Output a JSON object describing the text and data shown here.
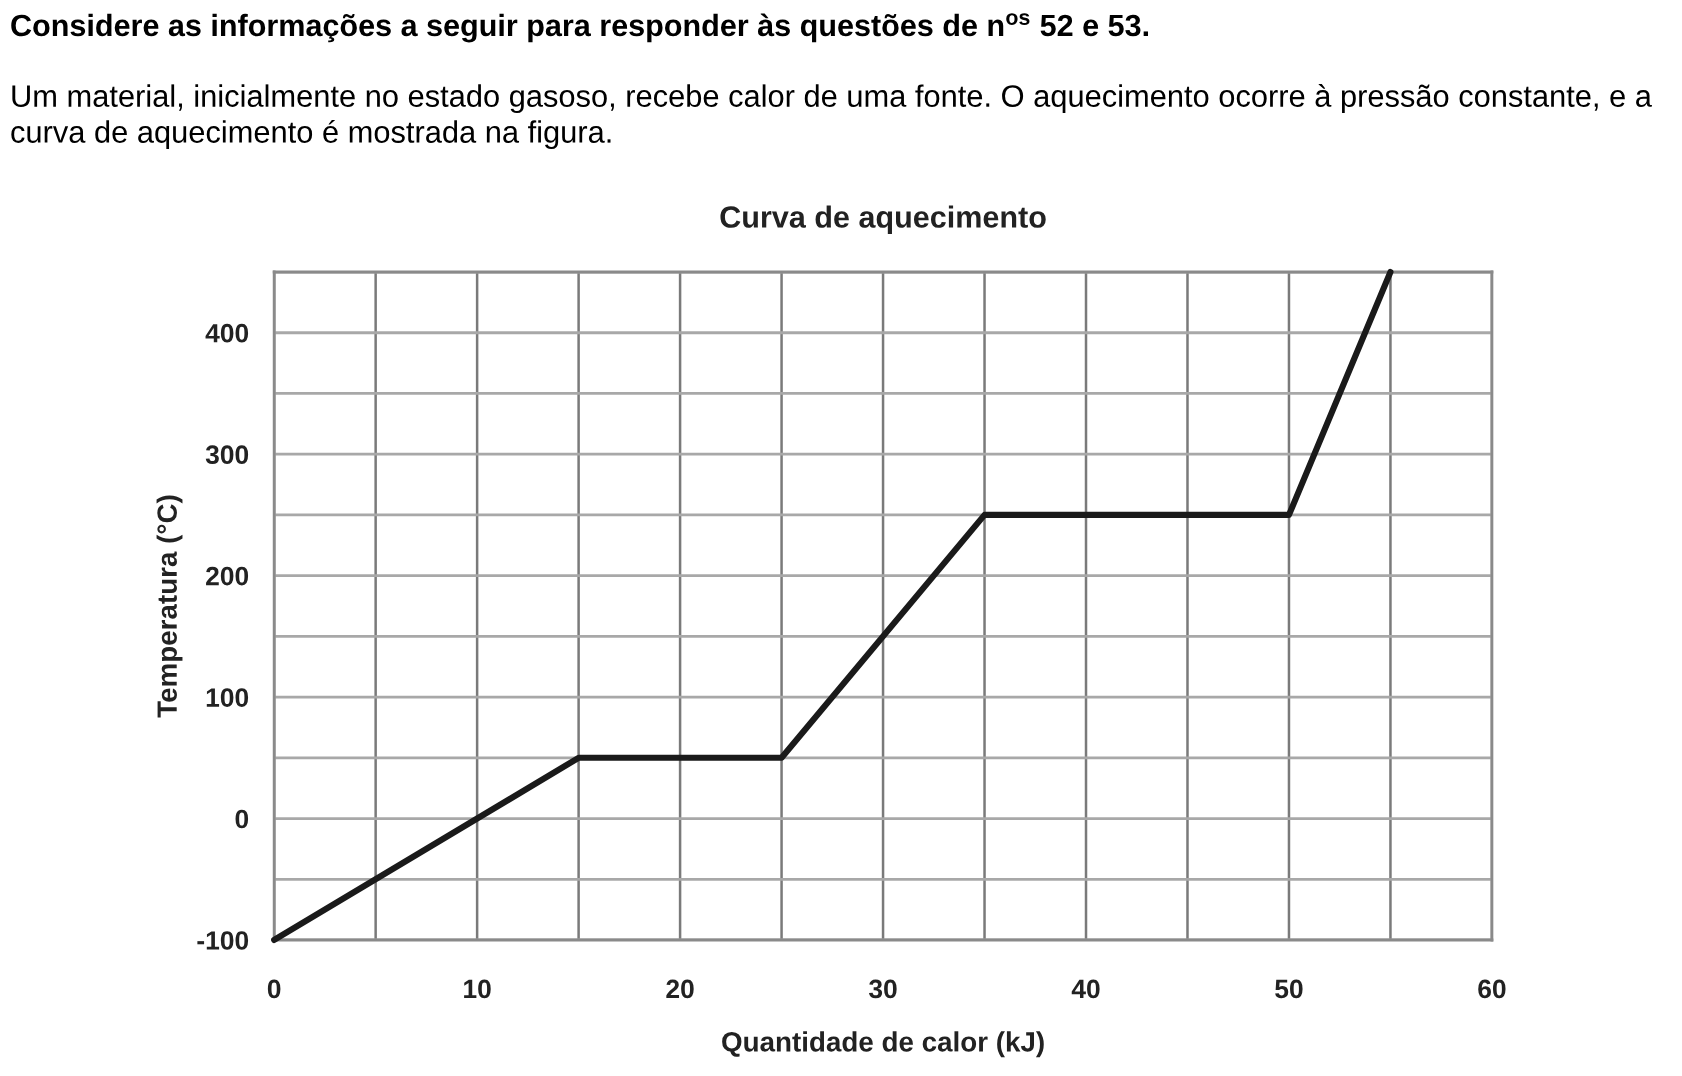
{
  "chart_data": {
    "type": "line",
    "title": "Curva de aquecimento",
    "xlabel": "Quantidade de calor (kJ)",
    "ylabel": "Temperatura (°C)",
    "annotations": [
      "Considere as informações a seguir para responder às questões de n$^{os}$ 52 e 53.",
      "Um material, inicialmente no estado gasoso, recebe calor de uma fonte. O aquecimento ocorre à pressão constante, e a curva de aquecimento é mostrada na figura."
    ],
    "series": [
      {
        "color": "#1a1a1a",
        "x": [
          0,
          15,
          25,
          35,
          50,
          55
        ],
        "values": [
          -100,
          50,
          50,
          250,
          250,
          450
        ]
      }
    ],
    "xlim": [
      0,
      60
    ],
    "ylim": [
      -100,
      450
    ],
    "xticks": [
      0,
      {
        "value": 5,
        "label": null
      },
      10,
      {
        "value": 15,
        "label": null
      },
      20,
      {
        "value": 25,
        "label": null
      },
      30,
      {
        "value": 35,
        "label": null
      },
      40,
      {
        "value": 45,
        "label": null
      },
      50,
      {
        "value": 55,
        "label": null
      },
      60
    ],
    "yticks": [
      -100,
      {
        "value": -50,
        "label": null
      },
      0,
      {
        "value": 50,
        "label": null
      },
      100,
      {
        "value": 150,
        "label": null
      },
      200,
      {
        "value": 250,
        "label": null
      },
      300,
      {
        "value": 350,
        "label": null
      },
      400,
      {
        "value": 450,
        "label": null
      }
    ],
    "grid": true
  }
}
